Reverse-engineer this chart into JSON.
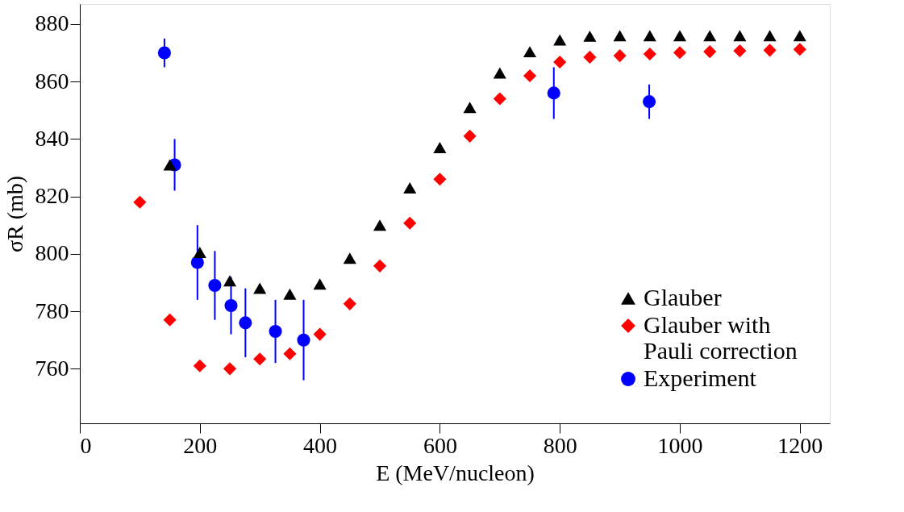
{
  "chart_data": {
    "type": "scatter",
    "xlabel": "E (MeV/nucleon)",
    "ylabel": "σR (mb)",
    "xlim": [
      0,
      1250
    ],
    "ylim": [
      741,
      887
    ],
    "xticks": [
      0,
      200,
      400,
      600,
      800,
      1000,
      1200
    ],
    "yticks": [
      760,
      780,
      800,
      820,
      840,
      860,
      880
    ],
    "grid": false,
    "legend": "bottom right",
    "series": [
      {
        "name": "Glauber",
        "color": "#000000",
        "marker": "triangle",
        "x": [
          150,
          200,
          250,
          300,
          350,
          400,
          450,
          500,
          550,
          600,
          650,
          700,
          750,
          800,
          850,
          900,
          950,
          1000,
          1050,
          1100,
          1150,
          1200
        ],
        "values": [
          831,
          800.5,
          790.6,
          788,
          786,
          789.5,
          798.5,
          810,
          823,
          837,
          851,
          863,
          870.4,
          874.5,
          875.8,
          876,
          876,
          876,
          876,
          876,
          876,
          876
        ]
      },
      {
        "name": "Glauber with\nPauli correction",
        "color": "#ff0000",
        "marker": "diamond",
        "x": [
          100,
          150,
          200,
          250,
          300,
          350,
          400,
          450,
          500,
          550,
          600,
          650,
          700,
          750,
          800,
          850,
          900,
          950,
          1000,
          1050,
          1100,
          1150,
          1200
        ],
        "values": [
          818,
          777,
          761,
          760,
          763.4,
          765.2,
          772,
          782.6,
          795.8,
          810.7,
          826,
          841,
          854,
          862,
          866.8,
          868.5,
          869,
          869.6,
          870.1,
          870.4,
          870.7,
          870.9,
          871.2
        ]
      },
      {
        "name": "Experiment",
        "color": "#0000ff",
        "marker": "circle",
        "x": [
          141,
          158,
          196,
          225,
          252,
          276,
          326,
          373,
          790,
          949
        ],
        "values": [
          870,
          831,
          797,
          789,
          782,
          776,
          773,
          770,
          856,
          853
        ],
        "errors": [
          [
            865,
            875
          ],
          [
            822,
            840
          ],
          [
            784,
            810
          ],
          [
            777,
            801
          ],
          [
            772,
            792
          ],
          [
            764,
            788
          ],
          [
            762,
            784
          ],
          [
            756,
            784
          ],
          [
            847,
            865
          ],
          [
            847,
            859
          ]
        ]
      }
    ]
  }
}
